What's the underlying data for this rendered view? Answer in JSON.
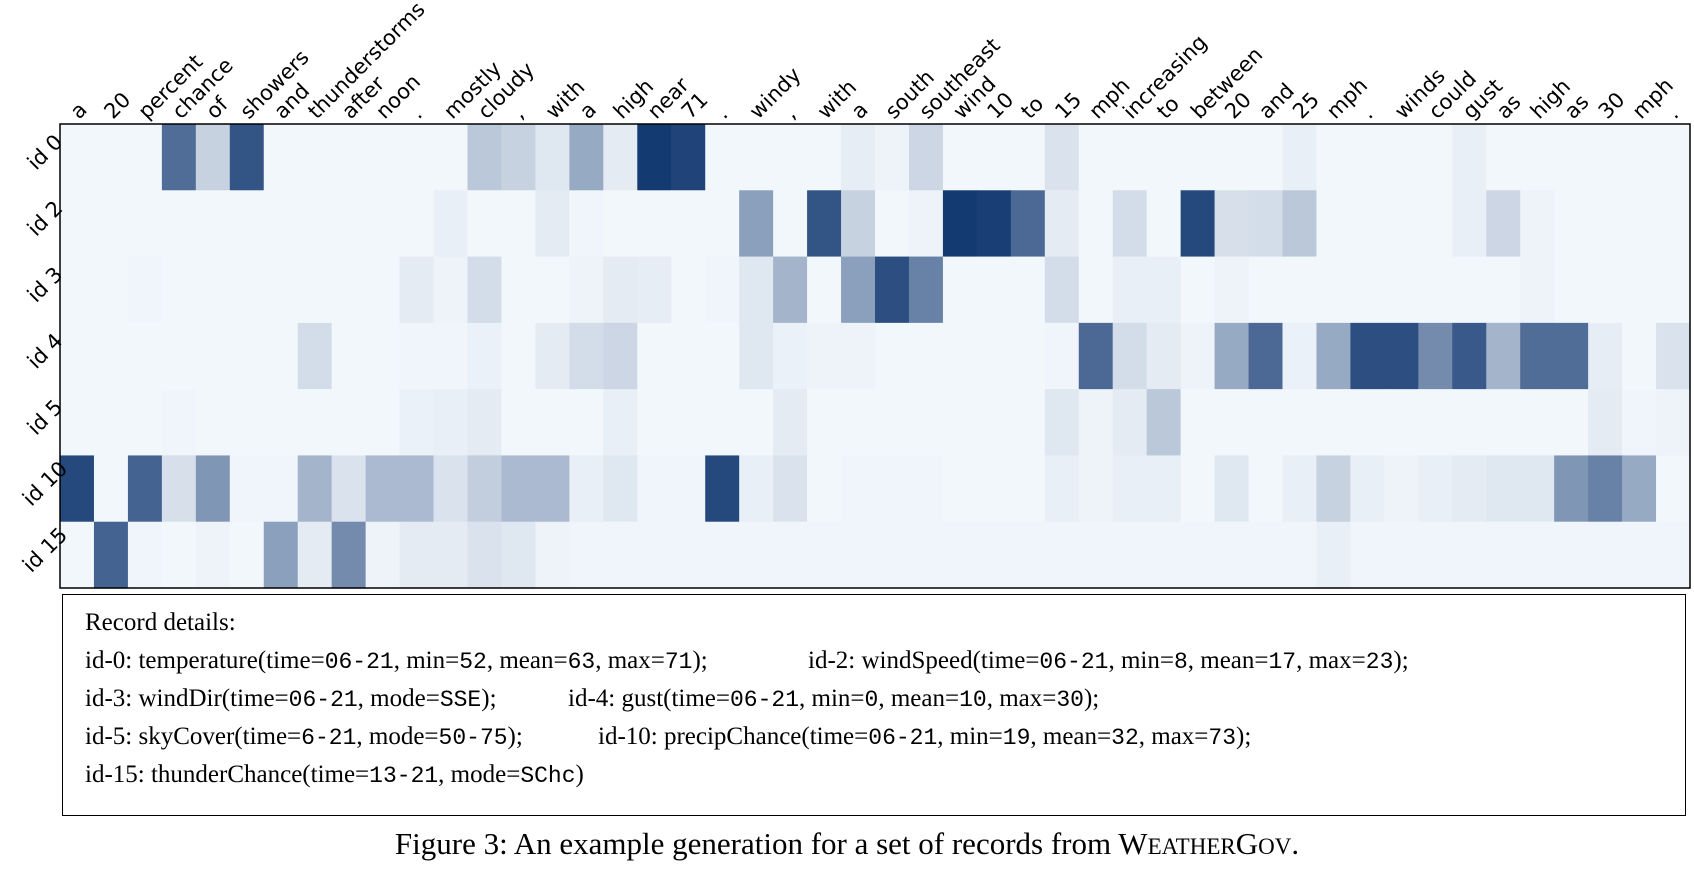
{
  "chart_data": {
    "type": "heatmap",
    "colormap": "Blues",
    "x_tokens": [
      "a",
      "20",
      "percent",
      "chance",
      "of",
      "showers",
      "and",
      "thunderstorms",
      "after",
      "noon",
      ".",
      "mostly",
      "cloudy",
      ",",
      "with",
      "a",
      "high",
      "near",
      "71",
      ".",
      "windy",
      ",",
      "with",
      "a",
      "south",
      "southeast",
      "wind",
      "10",
      "to",
      "15",
      "mph",
      "increasing",
      "to",
      "between",
      "20",
      "and",
      "25",
      "mph",
      ".",
      "winds",
      "could",
      "gust",
      "as",
      "high",
      "as",
      "30",
      "mph",
      "."
    ],
    "y_labels": [
      "id 0",
      "id 2",
      "id 3",
      "id 4",
      "id 5",
      "id 10",
      "id 15"
    ],
    "values": [
      [
        0.02,
        0.02,
        0.02,
        0.7,
        0.2,
        0.82,
        0.02,
        0.02,
        0.02,
        0.02,
        0.02,
        0.02,
        0.25,
        0.2,
        0.1,
        0.4,
        0.08,
        0.95,
        0.9,
        0.02,
        0.02,
        0.02,
        0.02,
        0.07,
        0.04,
        0.18,
        0.02,
        0.02,
        0.02,
        0.12,
        0.02,
        0.02,
        0.02,
        0.02,
        0.02,
        0.02,
        0.06,
        0.02,
        0.02,
        0.02,
        0.02,
        0.06,
        0.02,
        0.02,
        0.02,
        0.02,
        0.02,
        0.02
      ],
      [
        0.02,
        0.02,
        0.02,
        0.02,
        0.02,
        0.02,
        0.02,
        0.02,
        0.02,
        0.02,
        0.02,
        0.06,
        0.02,
        0.02,
        0.08,
        0.03,
        0.02,
        0.02,
        0.02,
        0.02,
        0.45,
        0.02,
        0.82,
        0.2,
        0.02,
        0.04,
        0.95,
        0.93,
        0.72,
        0.08,
        0.02,
        0.15,
        0.02,
        0.88,
        0.14,
        0.15,
        0.25,
        0.02,
        0.02,
        0.02,
        0.02,
        0.06,
        0.18,
        0.04,
        0.02,
        0.02,
        0.02,
        0.02
      ],
      [
        0.02,
        0.02,
        0.03,
        0.02,
        0.02,
        0.02,
        0.02,
        0.02,
        0.02,
        0.02,
        0.08,
        0.04,
        0.15,
        0.02,
        0.02,
        0.04,
        0.08,
        0.07,
        0.02,
        0.03,
        0.1,
        0.35,
        0.02,
        0.45,
        0.85,
        0.6,
        0.02,
        0.02,
        0.02,
        0.15,
        0.02,
        0.06,
        0.06,
        0.02,
        0.04,
        0.02,
        0.02,
        0.02,
        0.02,
        0.02,
        0.02,
        0.02,
        0.02,
        0.04,
        0.02,
        0.02,
        0.02,
        0.02
      ],
      [
        0.02,
        0.02,
        0.02,
        0.02,
        0.02,
        0.02,
        0.02,
        0.15,
        0.02,
        0.02,
        0.03,
        0.03,
        0.05,
        0.02,
        0.08,
        0.15,
        0.18,
        0.02,
        0.02,
        0.02,
        0.1,
        0.05,
        0.04,
        0.04,
        0.02,
        0.02,
        0.02,
        0.02,
        0.02,
        0.03,
        0.72,
        0.15,
        0.08,
        0.04,
        0.4,
        0.72,
        0.05,
        0.4,
        0.85,
        0.85,
        0.55,
        0.8,
        0.35,
        0.7,
        0.7,
        0.07,
        0.02,
        0.12
      ],
      [
        0.02,
        0.02,
        0.02,
        0.03,
        0.02,
        0.02,
        0.02,
        0.02,
        0.02,
        0.02,
        0.05,
        0.06,
        0.08,
        0.02,
        0.02,
        0.02,
        0.06,
        0.02,
        0.02,
        0.02,
        0.02,
        0.08,
        0.02,
        0.02,
        0.02,
        0.02,
        0.02,
        0.02,
        0.02,
        0.1,
        0.04,
        0.08,
        0.25,
        0.02,
        0.02,
        0.02,
        0.02,
        0.02,
        0.02,
        0.02,
        0.02,
        0.02,
        0.02,
        0.02,
        0.02,
        0.08,
        0.03,
        0.04
      ],
      [
        0.88,
        0.02,
        0.75,
        0.14,
        0.5,
        0.03,
        0.03,
        0.35,
        0.12,
        0.32,
        0.32,
        0.12,
        0.22,
        0.32,
        0.32,
        0.06,
        0.1,
        0.03,
        0.03,
        0.88,
        0.06,
        0.12,
        0.02,
        0.03,
        0.03,
        0.03,
        0.02,
        0.02,
        0.02,
        0.06,
        0.04,
        0.06,
        0.06,
        0.02,
        0.1,
        0.02,
        0.06,
        0.2,
        0.06,
        0.04,
        0.06,
        0.08,
        0.1,
        0.1,
        0.5,
        0.6,
        0.4,
        0.02
      ],
      [
        0.02,
        0.75,
        0.03,
        0.02,
        0.04,
        0.02,
        0.45,
        0.08,
        0.55,
        0.04,
        0.08,
        0.08,
        0.12,
        0.1,
        0.04,
        0.03,
        0.03,
        0.03,
        0.03,
        0.03,
        0.03,
        0.03,
        0.03,
        0.03,
        0.03,
        0.03,
        0.03,
        0.03,
        0.03,
        0.03,
        0.03,
        0.03,
        0.03,
        0.03,
        0.03,
        0.03,
        0.03,
        0.06,
        0.03,
        0.03,
        0.03,
        0.03,
        0.03,
        0.03,
        0.03,
        0.03,
        0.03,
        0.03
      ]
    ]
  },
  "record_box": {
    "title": "Record details:",
    "line1": {
      "id_a": "id-0: temperature(time=",
      "time_a": "06-21",
      "min_a_label": ", min=",
      "min_a": "52",
      "mean_a_label": ", mean=",
      "mean_a": "63",
      "max_a_label": ", max=",
      "max_a": "71",
      "end_a": ");",
      "id_b": "id-2: windSpeed(time=",
      "time_b": "06-21",
      "min_b_label": ", min=",
      "min_b": "8",
      "mean_b_label": ", mean=",
      "mean_b": "17",
      "max_b_label": ", max=",
      "max_b": "23",
      "end_b": ");"
    },
    "line2": {
      "id_a": "id-3: windDir(time=",
      "time_a": "06-21",
      "mode_a_label": ", mode=",
      "mode_a": "SSE",
      "end_a": ");",
      "id_b": "id-4: gust(time=",
      "time_b": "06-21",
      "min_b_label": ", min=",
      "min_b": "0",
      "mean_b_label": ", mean=",
      "mean_b": "10",
      "max_b_label": ", max=",
      "max_b": "30",
      "end_b": ");"
    },
    "line3": {
      "id_a": "id-5: skyCover(time=",
      "time_a": "6-21",
      "mode_a_label": ", mode=",
      "mode_a": "50-75",
      "end_a": ");",
      "id_b": "id-10: precipChance(time=",
      "time_b": "06-21",
      "min_b_label": ", min=",
      "min_b": "19",
      "mean_b_label": ", mean=",
      "mean_b": "32",
      "max_b_label": ", max=",
      "max_b": "73",
      "end_b": ");"
    },
    "line4": {
      "id_a": "id-15: thunderChance(time=",
      "time_a": "13-21",
      "mode_a_label": ", mode=",
      "mode_a": "SChc",
      "end_a": ")"
    }
  },
  "caption": {
    "prefix": "Figure 3: An example generation for a set of records from ",
    "w1": "W",
    "w2": "EATHER",
    "w3": "G",
    "w4": "OV",
    "suffix": "."
  }
}
